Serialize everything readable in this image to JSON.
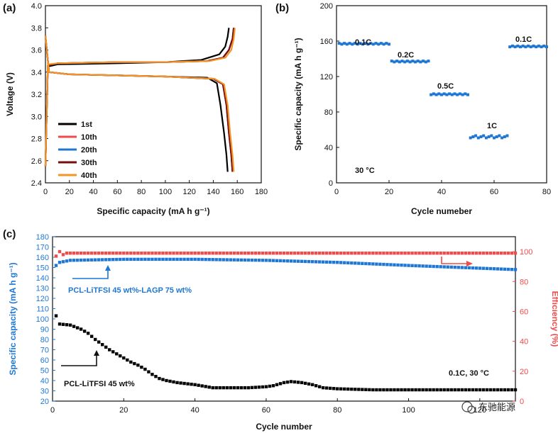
{
  "chart_data": [
    {
      "panel": "(a)",
      "type": "line",
      "xlabel": "Specific capacity (mA h g⁻¹)",
      "ylabel": "Voltage (V)",
      "xlim": [
        0,
        180
      ],
      "ylim": [
        2.4,
        4.0
      ],
      "xticks": [
        0,
        20,
        40,
        60,
        80,
        100,
        120,
        140,
        160,
        180
      ],
      "yticks": [
        2.4,
        2.6,
        2.8,
        3.0,
        3.2,
        3.4,
        3.6,
        3.8,
        4.0
      ],
      "legend": [
        "1st",
        "10th",
        "20th",
        "30th",
        "40th"
      ],
      "series": [
        {
          "name": "1st",
          "color": "#000000",
          "charge": [
            [
              0,
              2.55
            ],
            [
              2,
              3.45
            ],
            [
              10,
              3.47
            ],
            [
              60,
              3.48
            ],
            [
              100,
              3.49
            ],
            [
              130,
              3.51
            ],
            [
              145,
              3.56
            ],
            [
              150,
              3.63
            ],
            [
              152,
              3.72
            ],
            [
              153,
              3.8
            ]
          ],
          "discharge": [
            [
              0,
              3.73
            ],
            [
              3,
              3.4
            ],
            [
              20,
              3.38
            ],
            [
              60,
              3.37
            ],
            [
              100,
              3.36
            ],
            [
              135,
              3.35
            ],
            [
              143,
              3.3
            ],
            [
              146,
              3.1
            ],
            [
              149,
              2.85
            ],
            [
              151,
              2.65
            ],
            [
              152,
              2.5
            ]
          ]
        },
        {
          "name": "10th",
          "color": "#f04a4a",
          "charge": [
            [
              0,
              2.55
            ],
            [
              2,
              3.46
            ],
            [
              10,
              3.48
            ],
            [
              60,
              3.49
            ],
            [
              100,
              3.49
            ],
            [
              135,
              3.5
            ],
            [
              148,
              3.53
            ],
            [
              153,
              3.6
            ],
            [
              156,
              3.7
            ],
            [
              157,
              3.8
            ]
          ],
          "discharge": [
            [
              0,
              3.72
            ],
            [
              3,
              3.4
            ],
            [
              20,
              3.38
            ],
            [
              60,
              3.37
            ],
            [
              100,
              3.36
            ],
            [
              140,
              3.34
            ],
            [
              148,
              3.29
            ],
            [
              151,
              3.1
            ],
            [
              153,
              2.85
            ],
            [
              155,
              2.65
            ],
            [
              156,
              2.5
            ]
          ]
        },
        {
          "name": "20th",
          "color": "#1f77d4",
          "charge": [
            [
              0,
              2.55
            ],
            [
              2,
              3.46
            ],
            [
              10,
              3.48
            ],
            [
              60,
              3.49
            ],
            [
              100,
              3.49
            ],
            [
              135,
              3.5
            ],
            [
              148,
              3.53
            ],
            [
              153,
              3.6
            ],
            [
              156,
              3.7
            ],
            [
              157,
              3.8
            ]
          ],
          "discharge": [
            [
              0,
              3.72
            ],
            [
              3,
              3.4
            ],
            [
              20,
              3.38
            ],
            [
              60,
              3.37
            ],
            [
              100,
              3.36
            ],
            [
              140,
              3.34
            ],
            [
              148,
              3.29
            ],
            [
              151,
              3.1
            ],
            [
              153,
              2.85
            ],
            [
              155,
              2.65
            ],
            [
              156,
              2.5
            ]
          ]
        },
        {
          "name": "30th",
          "color": "#7a0c0c",
          "charge": [
            [
              0,
              2.55
            ],
            [
              2,
              3.46
            ],
            [
              10,
              3.48
            ],
            [
              60,
              3.49
            ],
            [
              100,
              3.49
            ],
            [
              135,
              3.5
            ],
            [
              148,
              3.53
            ],
            [
              153,
              3.6
            ],
            [
              156,
              3.7
            ],
            [
              157,
              3.8
            ]
          ],
          "discharge": [
            [
              0,
              3.72
            ],
            [
              3,
              3.4
            ],
            [
              20,
              3.38
            ],
            [
              60,
              3.37
            ],
            [
              100,
              3.36
            ],
            [
              140,
              3.34
            ],
            [
              148,
              3.29
            ],
            [
              151,
              3.1
            ],
            [
              153,
              2.85
            ],
            [
              155,
              2.65
            ],
            [
              156,
              2.5
            ]
          ]
        },
        {
          "name": "40th",
          "color": "#f39425",
          "charge": [
            [
              0,
              2.55
            ],
            [
              2,
              3.47
            ],
            [
              10,
              3.48
            ],
            [
              60,
              3.49
            ],
            [
              100,
              3.49
            ],
            [
              137,
              3.5
            ],
            [
              150,
              3.53
            ],
            [
              155,
              3.6
            ],
            [
              157,
              3.7
            ],
            [
              158,
              3.8
            ]
          ],
          "discharge": [
            [
              0,
              3.73
            ],
            [
              3,
              3.4
            ],
            [
              20,
              3.38
            ],
            [
              60,
              3.37
            ],
            [
              100,
              3.36
            ],
            [
              141,
              3.34
            ],
            [
              149,
              3.29
            ],
            [
              152,
              3.1
            ],
            [
              154,
              2.85
            ],
            [
              156,
              2.65
            ],
            [
              157,
              2.5
            ]
          ]
        }
      ]
    },
    {
      "panel": "(b)",
      "type": "scatter",
      "xlabel": "Cycle numeber",
      "ylabel": "Specific capacity (mA h g⁻¹)",
      "xlim": [
        0,
        80
      ],
      "ylim": [
        0,
        200
      ],
      "xticks": [
        0,
        20,
        40,
        60,
        80
      ],
      "yticks": [
        0,
        40,
        80,
        120,
        160,
        200
      ],
      "color": "#1f77d4",
      "annotation": "30 °C",
      "segments": [
        {
          "label": "0.1C",
          "start": 1,
          "end": 20,
          "value": 157
        },
        {
          "label": "0.2C",
          "start": 21,
          "end": 35,
          "value": 137
        },
        {
          "label": "0.5C",
          "start": 36,
          "end": 50,
          "value": 100
        },
        {
          "label": "1C",
          "start": 51,
          "end": 65,
          "value": 52
        },
        {
          "label": "0.1C",
          "start": 66,
          "end": 80,
          "value": 154
        }
      ]
    },
    {
      "panel": "(c)",
      "type": "scatter",
      "xlabel": "Cycle number",
      "ylabel": "Specific capacity (mA h g⁻¹)",
      "ylabel_right": "Efficiency (%)",
      "xlim": [
        0,
        130
      ],
      "ylim": [
        20,
        180
      ],
      "ylim_right": [
        0,
        110
      ],
      "xticks": [
        0,
        20,
        40,
        60,
        80,
        100,
        120
      ],
      "yticks": [
        20,
        30,
        40,
        50,
        60,
        70,
        80,
        90,
        100,
        110,
        120,
        130,
        140,
        150,
        160,
        170,
        180
      ],
      "yticks_right": [
        0,
        20,
        40,
        60,
        80,
        100
      ],
      "annotation": "0.1C, 30 °C",
      "series": [
        {
          "name": "PCL-LiTFSI 45 wt%-LAGP 75 wt%",
          "color": "#1f77d4",
          "axis": "left",
          "points": [
            [
              1,
              152
            ],
            [
              2,
              155
            ],
            [
              5,
              157
            ],
            [
              20,
              158
            ],
            [
              40,
              158
            ],
            [
              60,
              157
            ],
            [
              80,
              155
            ],
            [
              100,
              152
            ],
            [
              115,
              150
            ],
            [
              130,
              148
            ]
          ]
        },
        {
          "name": "PCL-LiTFSI 45 wt%",
          "color": "#000000",
          "axis": "left",
          "points": [
            [
              1,
              103
            ],
            [
              2,
              95
            ],
            [
              5,
              94
            ],
            [
              8,
              90
            ],
            [
              10,
              86
            ],
            [
              12,
              80
            ],
            [
              14,
              75
            ],
            [
              16,
              70
            ],
            [
              18,
              66
            ],
            [
              20,
              62
            ],
            [
              22,
              58
            ],
            [
              24,
              55
            ],
            [
              26,
              51
            ],
            [
              28,
              46
            ],
            [
              30,
              42
            ],
            [
              32,
              40
            ],
            [
              35,
              38
            ],
            [
              40,
              36
            ],
            [
              45,
              33
            ],
            [
              50,
              33
            ],
            [
              55,
              33
            ],
            [
              60,
              34
            ],
            [
              62,
              35
            ],
            [
              65,
              38
            ],
            [
              67,
              39
            ],
            [
              70,
              38
            ],
            [
              73,
              36
            ],
            [
              76,
              33
            ],
            [
              80,
              32
            ],
            [
              90,
              31
            ],
            [
              100,
              31
            ],
            [
              110,
              31
            ],
            [
              120,
              31
            ],
            [
              130,
              31
            ]
          ]
        },
        {
          "name": "Efficiency",
          "color": "#f04a4a",
          "axis": "right",
          "points": [
            [
              1,
              97
            ],
            [
              2,
              100
            ],
            [
              3,
              98
            ],
            [
              4,
              99
            ],
            [
              10,
              99
            ],
            [
              40,
              99
            ],
            [
              80,
              99
            ],
            [
              120,
              99
            ],
            [
              130,
              99
            ]
          ]
        }
      ]
    }
  ],
  "labels": {
    "panel_a": "(a)",
    "panel_b": "(b)",
    "panel_c": "(c)",
    "rate_0_1c": "0.1C",
    "rate_0_2c": "0.2C",
    "rate_0_5c": "0.5C",
    "rate_1c": "1C",
    "rate_0_1c_return": "0.1C",
    "temp_b": "30 °C",
    "series_lagp": "PCL-LiTFSI 45 wt%-LAGP 75 wt%",
    "series_pcl": "PCL-LiTFSI 45 wt%",
    "cond_c": "0.1C, 30 °C",
    "watermark": "东驰能源"
  }
}
